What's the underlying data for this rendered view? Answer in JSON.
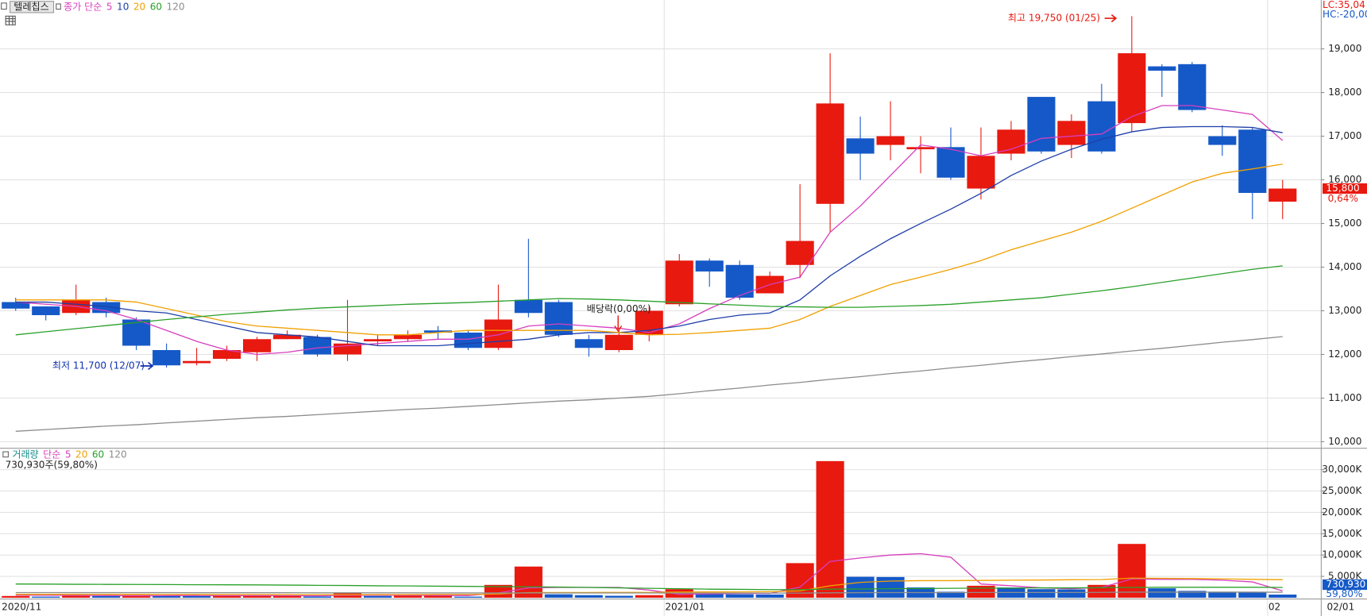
{
  "stock_name": "텔레칩스",
  "chart_data": [
    {
      "type": "candlestick",
      "legend_label": "종가 단순",
      "categories": [
        "2020/11",
        null,
        null,
        null,
        null,
        null,
        null,
        null,
        null,
        null,
        null,
        null,
        null,
        null,
        null,
        null,
        null,
        null,
        null,
        null,
        null,
        null,
        "2021/01",
        null,
        null,
        null,
        null,
        null,
        null,
        null,
        null,
        null,
        null,
        null,
        null,
        null,
        null,
        null,
        null,
        null,
        null,
        null,
        "02"
      ],
      "last_date": "02/01",
      "open": [
        13200,
        13100,
        12950,
        13200,
        12800,
        12100,
        11800,
        11900,
        12050,
        12350,
        12400,
        12000,
        12300,
        12350,
        12550,
        12500,
        12150,
        13250,
        13200,
        12350,
        12100,
        12450,
        13150,
        14150,
        14050,
        13400,
        14050,
        15450,
        16950,
        16800,
        16700,
        16750,
        15800,
        16600,
        17900,
        16800,
        17800,
        17300,
        18600,
        18650,
        17000,
        17150,
        15500
      ],
      "high": [
        13300,
        13100,
        13600,
        13300,
        12850,
        12250,
        12150,
        12200,
        12400,
        12550,
        12450,
        13250,
        12450,
        12550,
        12650,
        12550,
        13600,
        14650,
        13250,
        12450,
        12550,
        13100,
        14300,
        14200,
        14150,
        13900,
        15900,
        18900,
        17450,
        17800,
        17000,
        17200,
        17200,
        17350,
        17900,
        17500,
        18200,
        19750,
        18650,
        18700,
        17250,
        17200,
        16000
      ],
      "low": [
        13000,
        12780,
        12900,
        12850,
        12100,
        11700,
        11750,
        11850,
        11850,
        12350,
        11950,
        11850,
        12200,
        12300,
        12350,
        12100,
        12100,
        12850,
        12400,
        11950,
        12050,
        12300,
        13100,
        13550,
        13250,
        13400,
        13750,
        14800,
        16000,
        16450,
        16150,
        16000,
        15550,
        16450,
        16600,
        16500,
        16600,
        17100,
        17900,
        17550,
        16550,
        15100,
        15100
      ],
      "close": [
        13050,
        12900,
        13250,
        12950,
        12200,
        11750,
        11850,
        12100,
        12350,
        12450,
        12000,
        12250,
        12350,
        12450,
        12500,
        12150,
        12800,
        12950,
        12450,
        12150,
        12450,
        13000,
        14150,
        13900,
        13300,
        13800,
        14600,
        17750,
        16600,
        17000,
        16750,
        16050,
        16550,
        17150,
        16650,
        17350,
        16650,
        18900,
        18500,
        17600,
        16800,
        15700,
        15800
      ],
      "up_color": "#e8190f",
      "down_color": "#1559c8",
      "series": [
        {
          "name": "5",
          "color": "#d63fbf",
          "values": [
            13200,
            13150,
            13100,
            13000,
            12800,
            12550,
            12300,
            12100,
            12000,
            12050,
            12150,
            12200,
            12250,
            12300,
            12350,
            12350,
            12450,
            12650,
            12700,
            12650,
            12600,
            12500,
            12700,
            13050,
            13350,
            13600,
            13770,
            14800,
            15400,
            16100,
            16800,
            16700,
            16550,
            16700,
            16950,
            17000,
            17050,
            17450,
            17700,
            17700,
            17600,
            17500,
            16900
          ]
        },
        {
          "name": "10",
          "color": "#1f3fa8",
          "values": [
            13200,
            13200,
            13150,
            13100,
            13000,
            12950,
            12800,
            12650,
            12500,
            12450,
            12400,
            12300,
            12200,
            12200,
            12200,
            12250,
            12300,
            12350,
            12450,
            12500,
            12500,
            12550,
            12650,
            12800,
            12900,
            12950,
            13250,
            13800,
            14250,
            14650,
            15000,
            15330,
            15690,
            16100,
            16430,
            16700,
            16930,
            17100,
            17200,
            17220,
            17220,
            17200,
            17080
          ]
        },
        {
          "name": "20",
          "color": "#f0a000",
          "values": [
            13250,
            13250,
            13250,
            13250,
            13200,
            13050,
            12900,
            12750,
            12650,
            12600,
            12550,
            12500,
            12450,
            12450,
            12500,
            12550,
            12550,
            12550,
            12550,
            12550,
            12500,
            12450,
            12460,
            12500,
            12550,
            12600,
            12800,
            13100,
            13350,
            13600,
            13770,
            13950,
            14150,
            14400,
            14600,
            14800,
            15050,
            15350,
            15650,
            15950,
            16150,
            16250,
            16360
          ]
        },
        {
          "name": "60",
          "color": "#2aa02a",
          "values": [
            12450,
            12520,
            12590,
            12660,
            12730,
            12800,
            12860,
            12920,
            12970,
            13020,
            13060,
            13090,
            13120,
            13150,
            13170,
            13190,
            13220,
            13250,
            13280,
            13270,
            13250,
            13220,
            13190,
            13160,
            13130,
            13100,
            13090,
            13080,
            13080,
            13100,
            13120,
            13150,
            13200,
            13250,
            13300,
            13380,
            13460,
            13550,
            13650,
            13750,
            13850,
            13950,
            14030
          ]
        },
        {
          "name": "120",
          "color": "#8c8c8c",
          "values": [
            10240,
            10280,
            10320,
            10360,
            10390,
            10430,
            10470,
            10510,
            10550,
            10580,
            10620,
            10660,
            10700,
            10740,
            10770,
            10810,
            10850,
            10890,
            10930,
            10960,
            11000,
            11040,
            11100,
            11170,
            11230,
            11300,
            11360,
            11430,
            11490,
            11560,
            11620,
            11690,
            11750,
            11820,
            11880,
            11950,
            12010,
            12080,
            12140,
            12210,
            12280,
            12340,
            12410
          ]
        }
      ],
      "ylim": [
        9900,
        20120
      ],
      "yticks": [
        {
          "value": 10000,
          "label": "10,000"
        },
        {
          "value": 11000,
          "label": "11,000"
        },
        {
          "value": 12000,
          "label": "12,000"
        },
        {
          "value": 13000,
          "label": "13,000"
        },
        {
          "value": 14000,
          "label": "14,000"
        },
        {
          "value": 15000,
          "label": "15,000"
        },
        {
          "value": 16000,
          "label": "16,000"
        },
        {
          "value": 17000,
          "label": "17,000"
        },
        {
          "value": 18000,
          "label": "18,000"
        },
        {
          "value": 19000,
          "label": "19,000"
        }
      ],
      "grid": true,
      "annotations": {
        "high": "최고 19,750 (01/25)",
        "low": "최저 11,700 (12/07)",
        "dividend": "배당락(0,00%)"
      },
      "last_price_label": "15,800",
      "change_label": "0,64%",
      "lc": "LC:35,04",
      "hc": "HC:-20,00"
    },
    {
      "type": "bar",
      "title": "거래량",
      "legend_label": "단순",
      "info": "730,930주(59,80%)",
      "values": [
        400000,
        250000,
        600000,
        400000,
        600000,
        550000,
        400000,
        450000,
        500000,
        520000,
        300000,
        1200000,
        400000,
        450000,
        480000,
        250000,
        3000000,
        7300000,
        800000,
        600000,
        450000,
        600000,
        2000000,
        1000000,
        800000,
        750000,
        8100000,
        32000000,
        4900000,
        4850000,
        2400000,
        1400000,
        2800000,
        2400000,
        2000000,
        1950000,
        3000000,
        12600000,
        2200000,
        1600000,
        1400000,
        1200000,
        730930
      ],
      "series": [
        {
          "name": "5",
          "color": "#d63fbf",
          "values": [
            600000,
            580000,
            560000,
            520000,
            450000,
            480000,
            520000,
            500000,
            500000,
            480000,
            440000,
            590000,
            570000,
            570000,
            540000,
            520000,
            1100000,
            2300000,
            2400000,
            2400000,
            2400000,
            1800000,
            800000,
            900000,
            1000000,
            1000000,
            2500000,
            8500000,
            9300000,
            10000000,
            10300000,
            9500000,
            3200000,
            2800000,
            2300000,
            2100000,
            2400000,
            4400000,
            4300000,
            4300000,
            4100000,
            3700000,
            1600000
          ]
        },
        {
          "name": "20",
          "color": "#f0a000",
          "values": [
            800000,
            800000,
            790000,
            780000,
            770000,
            760000,
            750000,
            740000,
            730000,
            720000,
            710000,
            720000,
            730000,
            740000,
            750000,
            760000,
            880000,
            1200000,
            1220000,
            1230000,
            1240000,
            1250000,
            1320000,
            1350000,
            1370000,
            1400000,
            1600000,
            2800000,
            3600000,
            3900000,
            4000000,
            4000000,
            4050000,
            4100000,
            4150000,
            4200000,
            4250000,
            4600000,
            4550000,
            4500000,
            4400000,
            4300000,
            4200000
          ]
        },
        {
          "name": "60",
          "color": "#2aa02a",
          "values": [
            3200000,
            3180000,
            3150000,
            3120000,
            3100000,
            3080000,
            3050000,
            3020000,
            3000000,
            2950000,
            2900000,
            2850000,
            2800000,
            2750000,
            2700000,
            2650000,
            2600000,
            2550000,
            2500000,
            2400000,
            2300000,
            2200000,
            2100000,
            2000000,
            1950000,
            1900000,
            1900000,
            2000000,
            2050000,
            2100000,
            2150000,
            2200000,
            2250000,
            2250000,
            2300000,
            2300000,
            2350000,
            2400000,
            2450000,
            2450000,
            2450000,
            2450000,
            2400000
          ]
        },
        {
          "name": "120",
          "color": "#8c8c8c",
          "values": [
            1200000,
            1200000,
            1190000,
            1190000,
            1180000,
            1180000,
            1170000,
            1170000,
            1160000,
            1160000,
            1150000,
            1150000,
            1140000,
            1140000,
            1130000,
            1130000,
            1120000,
            1120000,
            1110000,
            1110000,
            1100000,
            1100000,
            1090000,
            1090000,
            1080000,
            1080000,
            1080000,
            1150000,
            1180000,
            1200000,
            1210000,
            1210000,
            1220000,
            1220000,
            1230000,
            1230000,
            1240000,
            1300000,
            1300000,
            1300000,
            1300000,
            1300000,
            1290000
          ]
        }
      ],
      "title_color": "#138a8a",
      "ylim": [
        0,
        34700000
      ],
      "yticks": [
        {
          "value": 5000000,
          "label": "5,000K"
        },
        {
          "value": 10000000,
          "label": "10,000K"
        },
        {
          "value": 15000000,
          "label": "15,000K"
        },
        {
          "value": 20000000,
          "label": "20,000K"
        },
        {
          "value": 25000000,
          "label": "25,000K"
        },
        {
          "value": 30000000,
          "label": "30,000K"
        }
      ],
      "grid": true,
      "last_label": "730,930",
      "ratio_label": "59,80%"
    }
  ]
}
